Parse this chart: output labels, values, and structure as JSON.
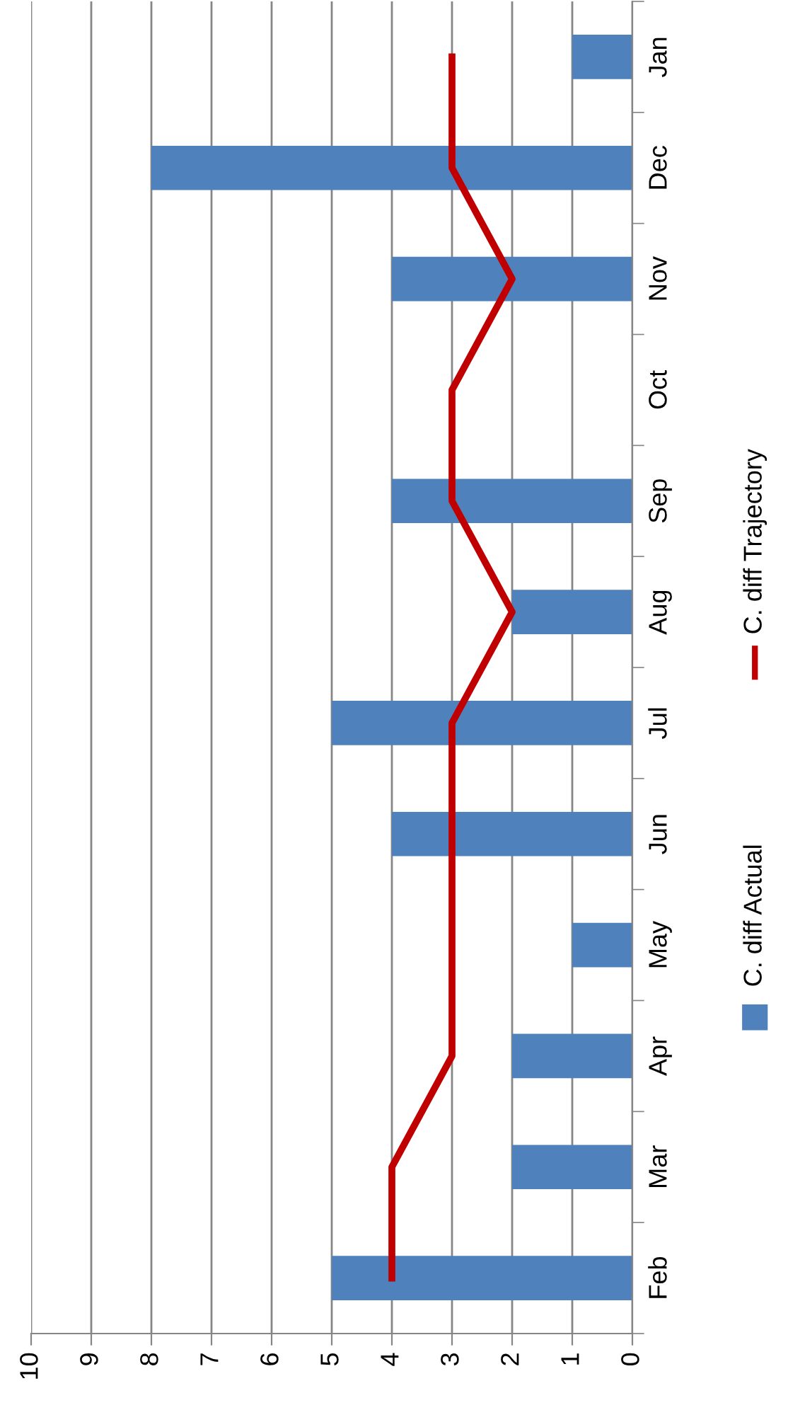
{
  "chart_data": {
    "type": "bar",
    "orientation": "horizontal",
    "categories": [
      "Jan",
      "Dec",
      "Nov",
      "Oct",
      "Sep",
      "Aug",
      "Jul",
      "Jun",
      "May",
      "Apr",
      "Mar",
      "Feb"
    ],
    "series": [
      {
        "name": "C. diff Actual",
        "color": "#4f81bd",
        "values": [
          1,
          8,
          4,
          0,
          4,
          2,
          5,
          4,
          1,
          2,
          2,
          5
        ]
      },
      {
        "name": "C. diff Trajectory",
        "type": "line",
        "color": "#c00000",
        "values": [
          3,
          3,
          2,
          3,
          3,
          2,
          3,
          3,
          3,
          3,
          4,
          4
        ]
      }
    ],
    "xlim": [
      10,
      0
    ],
    "xticks": [
      10,
      9,
      8,
      7,
      6,
      5,
      4,
      3,
      2,
      1,
      0
    ],
    "grid": "x",
    "legend": "right"
  }
}
